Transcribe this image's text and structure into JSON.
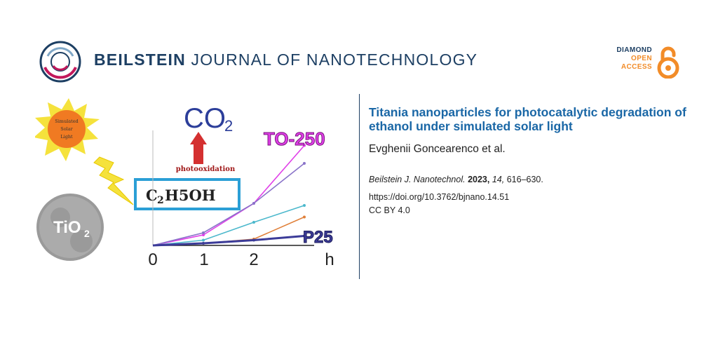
{
  "header": {
    "journal_bold": "BEILSTEIN",
    "journal_rest": "JOURNAL OF NANOTECHNOLOGY",
    "logo_icon": "beilstein-ring-logo",
    "open_access": {
      "line1": "DIAMOND",
      "line2": "OPEN",
      "line3": "ACCESS",
      "icon": "open-access-lock-icon"
    }
  },
  "article": {
    "title": "Titania nanoparticles for photocatalytic degradation of ethanol under simulated solar light",
    "authors": "Evghenii Goncearenco et al.",
    "citation": {
      "journal": "Beilstein J. Nanotechnol.",
      "year": "2023,",
      "volume": "14,",
      "pages": "616–630."
    },
    "doi": "https://doi.org/10.3762/bjnano.14.51",
    "license": "CC BY 4.0"
  },
  "graphic": {
    "sun_label_1": "Simulated",
    "sun_label_2": "Solar",
    "sun_label_3": "Light",
    "tio2_label": "TiO",
    "tio2_sub": "2",
    "co2_label": "CO",
    "co2_sub": "2",
    "arrow_label": "photooxidation",
    "ethanol_label_a": "C",
    "ethanol_label_sub": "2",
    "ethanol_label_b": "H5OH",
    "series_top_label": "TO-250",
    "series_bottom_label": "P25"
  },
  "chart_data": {
    "type": "line",
    "title": "",
    "xlabel": "h",
    "ylabel": "",
    "x": [
      0,
      1,
      2,
      3
    ],
    "tick_labels": [
      "0",
      "1",
      "2",
      "h"
    ],
    "ylim": [
      0,
      1
    ],
    "series": [
      {
        "name": "TO-250",
        "color": "#e040e8",
        "values": [
          0.0,
          0.1,
          0.4,
          0.95
        ]
      },
      {
        "name": "purple",
        "color": "#8a74c9",
        "values": [
          0.0,
          0.12,
          0.4,
          0.78
        ]
      },
      {
        "name": "cyan",
        "color": "#4bb8cc",
        "values": [
          0.0,
          0.05,
          0.22,
          0.38
        ]
      },
      {
        "name": "orange",
        "color": "#e0803a",
        "values": [
          0.0,
          0.02,
          0.06,
          0.27
        ]
      },
      {
        "name": "P25",
        "color": "#3b3b98",
        "values": [
          0.0,
          0.02,
          0.05,
          0.09
        ]
      }
    ]
  }
}
